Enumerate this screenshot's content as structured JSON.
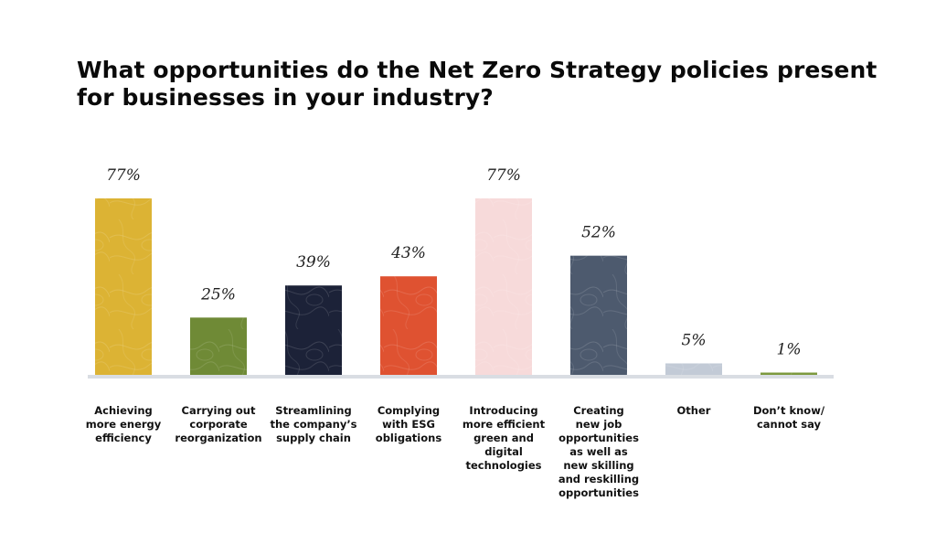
{
  "chart_data": {
    "type": "bar",
    "title": "What opportunities do the Net Zero Strategy policies present for businesses in your industry?",
    "title_lines": [
      "What opportunities do the Net Zero Strategy policies present",
      "for businesses in your industry?"
    ],
    "categories": [
      "Achieving more energy efficiency",
      "Carrying out corporate reorganization",
      "Streamlining the company’s supply chain",
      "Complying with ESG obligations",
      "Introducing more efficient green and digital technologies",
      "Creating new job opportunities as well as new skilling and reskilling opportunities",
      "Other",
      "Don’t know/ cannot say"
    ],
    "category_label_lines": [
      [
        "Achieving",
        "more energy",
        "efficiency"
      ],
      [
        "Carrying out",
        "corporate",
        "reorganization"
      ],
      [
        "Streamlining",
        "the company’s",
        "supply chain"
      ],
      [
        "Complying",
        "with ESG",
        "obligations"
      ],
      [
        "Introducing",
        "more efficient",
        "green and",
        "digital",
        "technologies"
      ],
      [
        "Creating",
        "new job",
        "opportunities",
        "as well as",
        "new skilling",
        "and reskilling",
        "opportunities"
      ],
      [
        "Other"
      ],
      [
        "Don’t know/",
        "cannot say"
      ]
    ],
    "values": [
      77,
      25,
      39,
      43,
      77,
      52,
      5,
      1
    ],
    "value_labels": [
      "77%",
      "25%",
      "39%",
      "43%",
      "77%",
      "52%",
      "5%",
      "1%"
    ],
    "bar_colors": [
      "#dcb334",
      "#6f8a36",
      "#1c2238",
      "#df5231",
      "#f7dada",
      "#4d5a6e",
      "#c2cad6",
      "#7d993e"
    ],
    "axis_color": "#d9dde3",
    "ylim": [
      0,
      77
    ],
    "xlabel": "",
    "ylabel": "",
    "grid": false,
    "legend": "none"
  }
}
